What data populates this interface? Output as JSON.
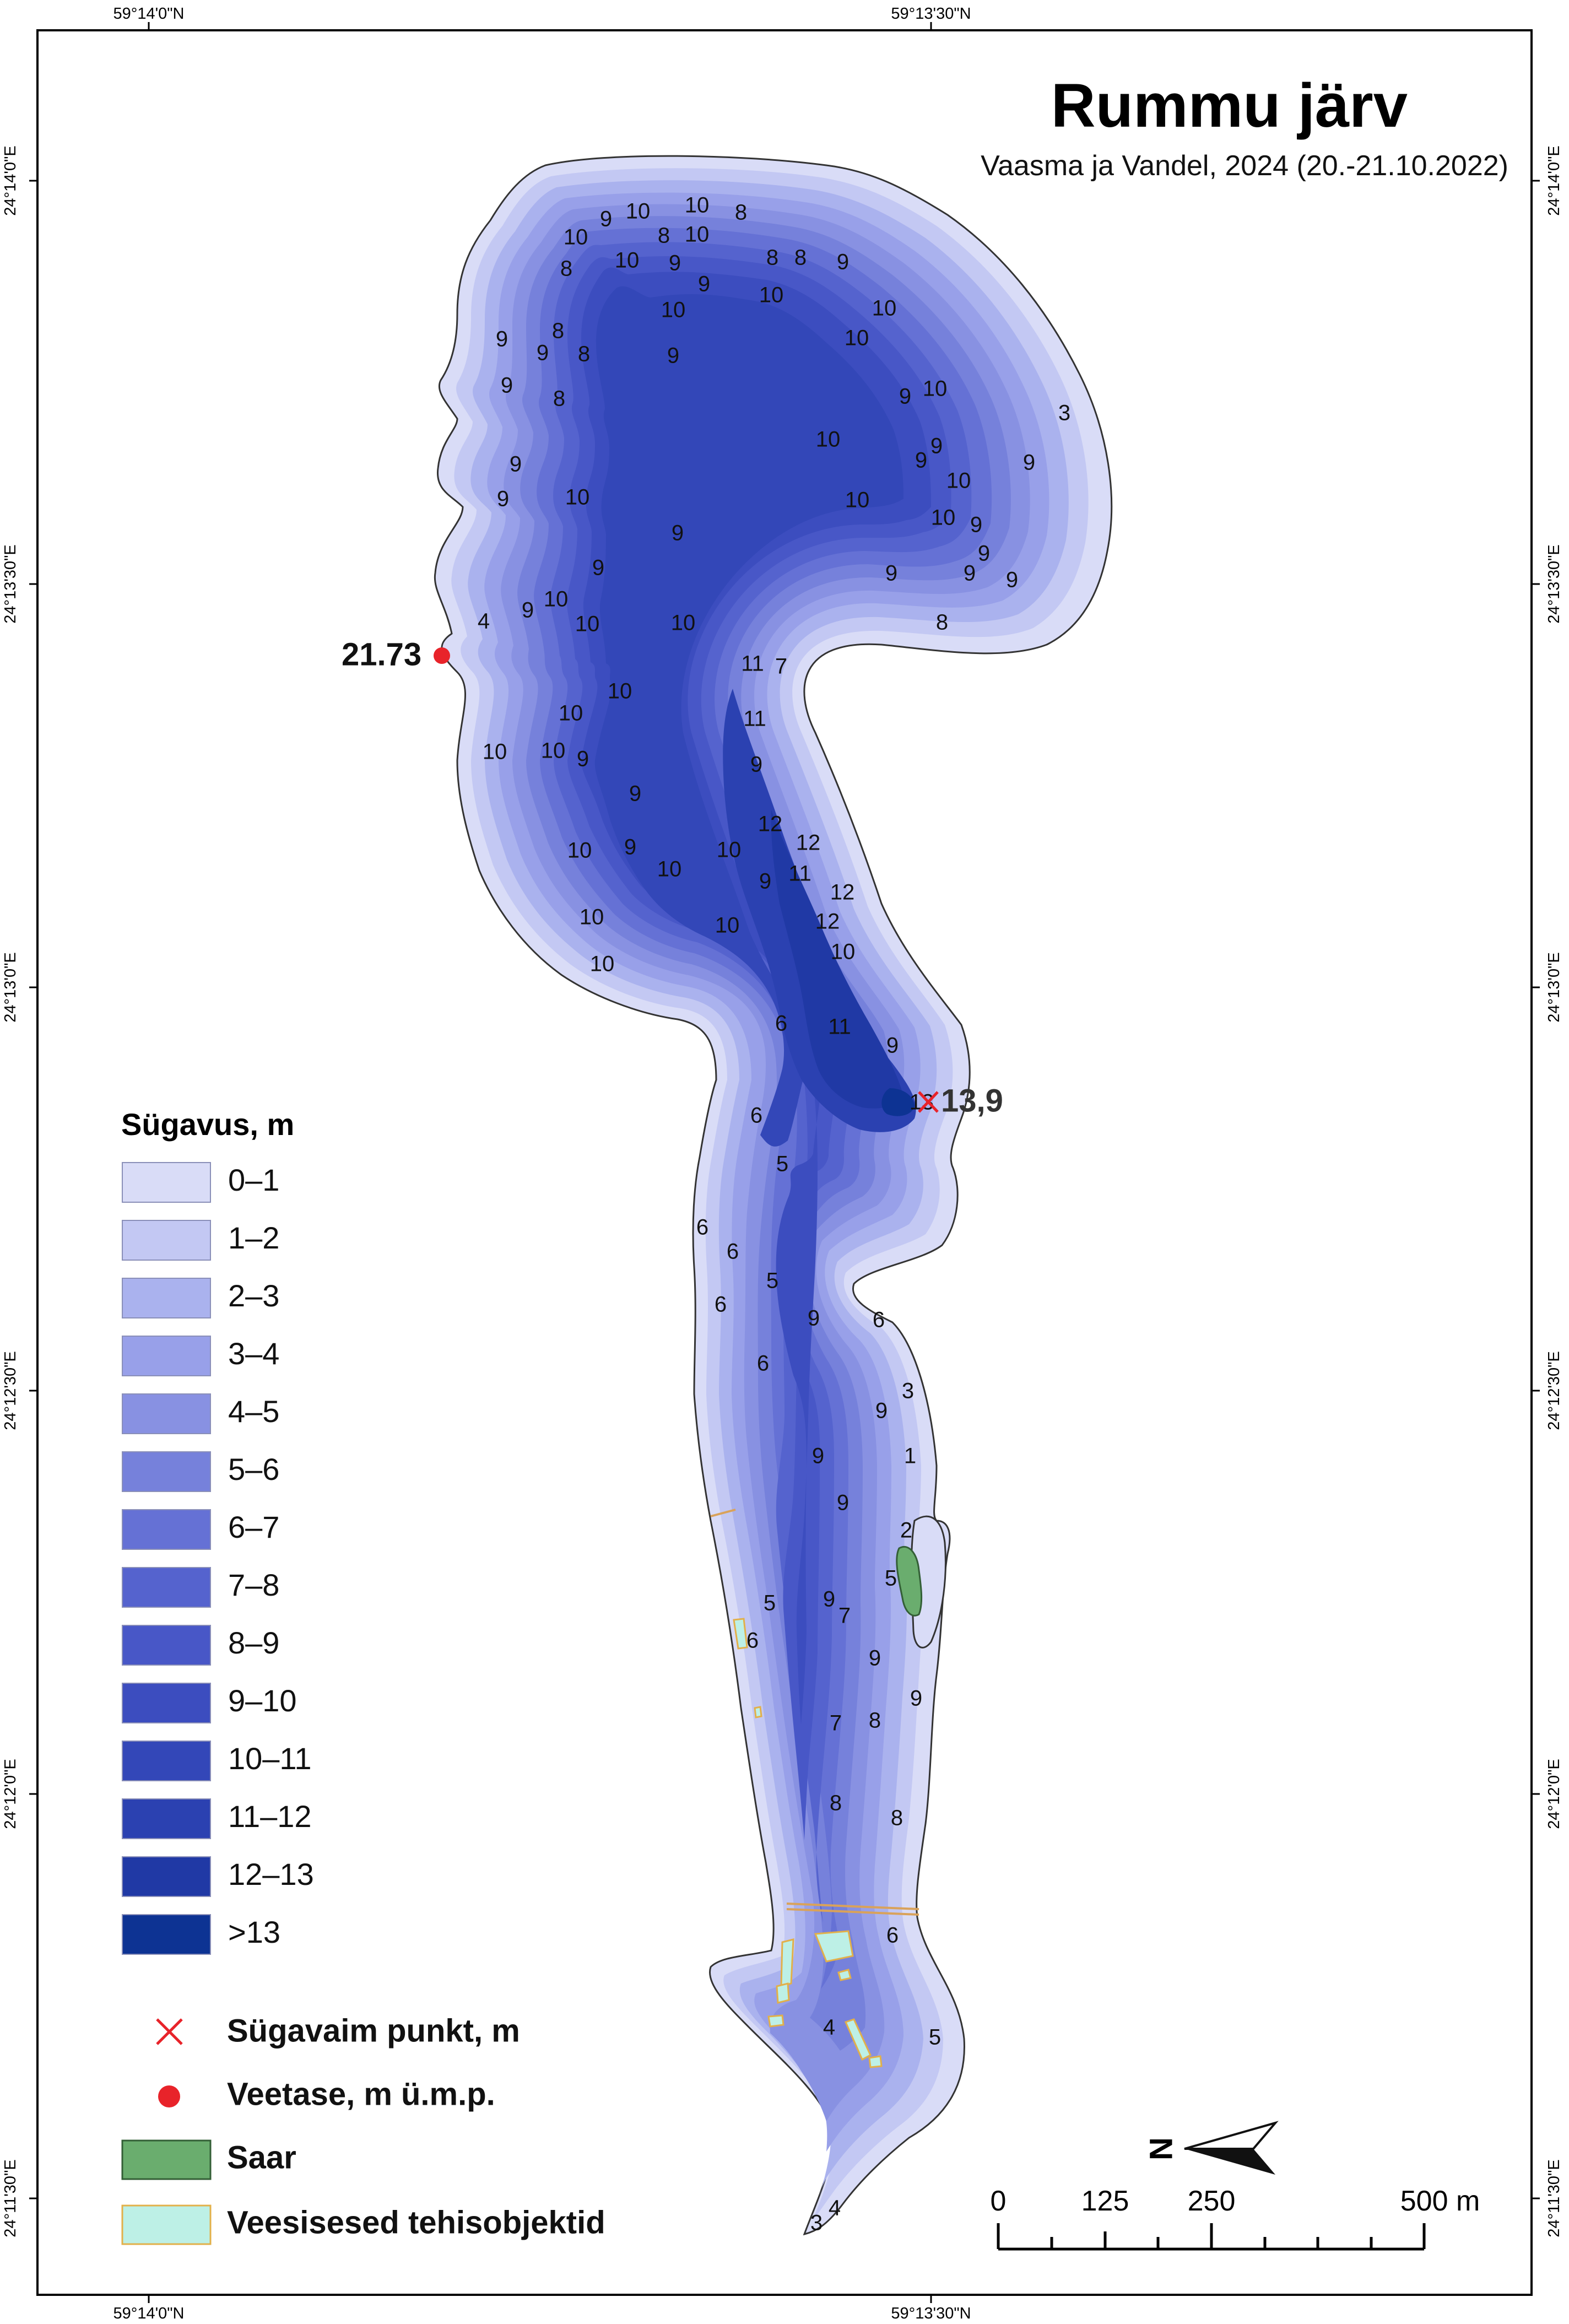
{
  "map": {
    "title": "Rummu järv",
    "subtitle": "Vaasma ja Vandel, 2024 (20.-21.10.2022)",
    "top_coords": [
      "59°14'0\"N",
      "59°13'30\"N"
    ],
    "bottom_coords": [
      "59°14'0\"N",
      "59°13'30\"N"
    ],
    "side_coords": [
      "24°14'0\"E",
      "24°13'30\"E",
      "24°13'0\"E",
      "24°12'30\"E",
      "24°12'0\"E",
      "24°11'30\"E"
    ],
    "water_level_label": "21.73",
    "deepest_label": "13,9",
    "north_label": "N"
  },
  "legend": {
    "title": "Sügavus, m",
    "classes": [
      {
        "label": "0–1",
        "color": "#d9dcf7"
      },
      {
        "label": "1–2",
        "color": "#c3c8f3"
      },
      {
        "label": "2–3",
        "color": "#aab2ee"
      },
      {
        "label": "3–4",
        "color": "#98a0e9"
      },
      {
        "label": "4–5",
        "color": "#8891e2"
      },
      {
        "label": "5–6",
        "color": "#7681db"
      },
      {
        "label": "6–7",
        "color": "#6571d5"
      },
      {
        "label": "7–8",
        "color": "#5563ce"
      },
      {
        "label": "8–9",
        "color": "#4857c7"
      },
      {
        "label": "9–10",
        "color": "#3c4dbf"
      },
      {
        "label": "10–11",
        "color": "#3347b8"
      },
      {
        "label": "11–12",
        "color": "#2b41b1"
      },
      {
        "label": "12–13",
        "color": "#2039a5"
      },
      {
        "label": ">13",
        "color": "#0d3393"
      }
    ],
    "symbols": [
      {
        "label": "Sügavaim punkt, m",
        "kind": "cross",
        "color": "#e8232a"
      },
      {
        "label": "Veetase, m ü.m.p.",
        "kind": "dot",
        "color": "#e8232a"
      },
      {
        "label": "Saar",
        "kind": "fill",
        "color": "#6aad6e"
      },
      {
        "label": "Veesisesed tehisobjektid",
        "kind": "fill",
        "color": "#bdf0e6"
      }
    ]
  },
  "scale_bar": {
    "labels": [
      "0",
      "125",
      "250",
      "500 m"
    ]
  },
  "depth_labels": {
    "values": [
      "10",
      "9",
      "10",
      "8",
      "10",
      "8",
      "10",
      "8",
      "9",
      "10",
      "9",
      "9",
      "8",
      "8",
      "9",
      "10",
      "10",
      "10",
      "9",
      "8",
      "9",
      "8",
      "9",
      "9",
      "9",
      "8",
      "10",
      "10",
      "3",
      "10",
      "9",
      "9",
      "10",
      "9",
      "9",
      "10",
      "9",
      "10",
      "9",
      "9",
      "9",
      "9",
      "10",
      "9",
      "9",
      "8",
      "10",
      "4",
      "10",
      "10",
      "9",
      "11",
      "7",
      "10",
      "10",
      "11",
      "10",
      "10",
      "9",
      "9",
      "9",
      "12",
      "10",
      "9",
      "10",
      "12",
      "9",
      "11",
      "12",
      "10",
      "12",
      "10",
      "10",
      "10",
      "10",
      "6",
      "11",
      "9",
      "13",
      "6",
      "5",
      "6",
      "6",
      "5",
      "6",
      "9",
      "6",
      "6",
      "3",
      "9",
      "9",
      "1",
      "9",
      "2",
      "5",
      "5",
      "9",
      "6",
      "7",
      "9",
      "9",
      "7",
      "8",
      "8",
      "8",
      "6",
      "4",
      "5",
      "4",
      "3"
    ]
  }
}
